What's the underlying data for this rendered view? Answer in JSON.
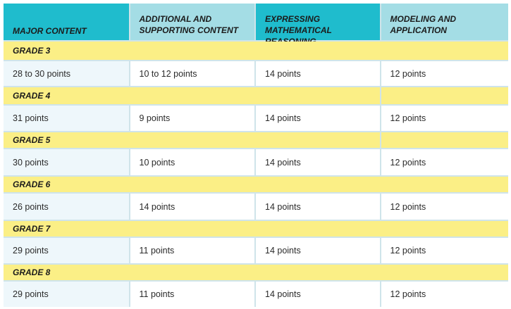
{
  "headers": [
    "MAJOR CONTENT",
    "ADDITIONAL AND SUPPORTING CONTENT",
    "EXPRESSING MATHEMATICAL REASONING",
    "MODELING AND APPLICATION"
  ],
  "header_lines": {
    "h0": [
      "MAJOR CONTENT"
    ],
    "h1": [
      "ADDITIONAL AND",
      "SUPPORTING CONTENT"
    ],
    "h2": [
      "EXPRESSING MATHEMATICAL",
      "REASONING"
    ],
    "h3": [
      "MODELING AND",
      "APPLICATION"
    ]
  },
  "grades": [
    {
      "label": "GRADE 3",
      "values": [
        "28 to 30 points",
        "10 to 12 points",
        "14 points",
        "12 points"
      ]
    },
    {
      "label": "GRADE 4",
      "values": [
        "31 points",
        "9 points",
        "14 points",
        "12 points"
      ]
    },
    {
      "label": "GRADE 5",
      "values": [
        "30 points",
        "10 points",
        "14 points",
        "12 points"
      ]
    },
    {
      "label": "GRADE 6",
      "values": [
        "26 points",
        "14 points",
        "14 points",
        "12 points"
      ]
    },
    {
      "label": "GRADE 7",
      "values": [
        "29 points",
        "11 points",
        "14 points",
        "12 points"
      ]
    },
    {
      "label": "GRADE 8",
      "values": [
        "29 points",
        "11 points",
        "14 points",
        "12 points"
      ]
    }
  ],
  "colors": {
    "header_teal": "#1fbccd",
    "header_pale": "#a4dde5",
    "grade_band": "#fbef86",
    "first_column": "#eef7fb",
    "grid": "#cfe4ea"
  }
}
